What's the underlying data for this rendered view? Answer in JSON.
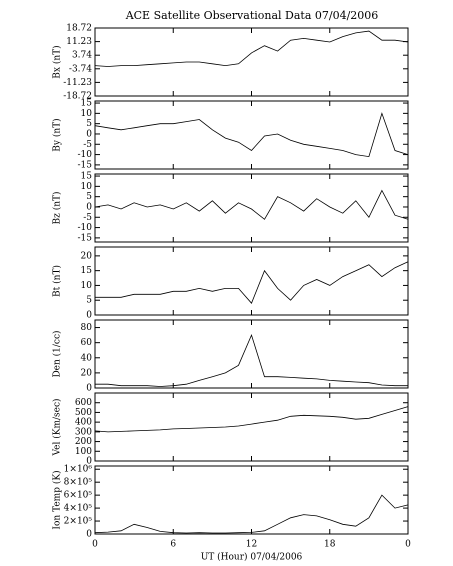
{
  "chart_data": [
    {
      "type": "line",
      "title": "ACE Satellite Observational Data  07/04/2006",
      "ylabel": "Bx (nT)",
      "color": "#000000",
      "x": [
        0,
        1,
        2,
        3,
        4,
        5,
        6,
        7,
        8,
        9,
        10,
        11,
        12,
        13,
        14,
        15,
        16,
        17,
        18,
        19,
        20,
        21,
        22,
        23,
        24
      ],
      "values": [
        -2,
        -2.5,
        -2,
        -2,
        -1.5,
        -1,
        -0.5,
        0,
        0,
        -1,
        -2,
        -1,
        5,
        9,
        6,
        12,
        13,
        12,
        11,
        14,
        16,
        17,
        12,
        12,
        11
      ],
      "xlim": [
        0,
        24
      ],
      "ylim": [
        -18.72,
        18.72
      ],
      "yticks": [
        18.72,
        11.23,
        3.74,
        -3.74,
        -11.23,
        -18.72
      ]
    },
    {
      "type": "line",
      "ylabel": "By (nT)",
      "color": "#000000",
      "x": [
        0,
        1,
        2,
        3,
        4,
        5,
        6,
        7,
        8,
        9,
        10,
        11,
        12,
        13,
        14,
        15,
        16,
        17,
        18,
        19,
        20,
        21,
        22,
        23,
        24
      ],
      "values": [
        4,
        3,
        2,
        3,
        4,
        5,
        5,
        6,
        7,
        2,
        -2,
        -4,
        -8,
        -1,
        0,
        -3,
        -5,
        -6,
        -7,
        -8,
        -10,
        -11,
        10,
        -8,
        -10
      ],
      "xlim": [
        0,
        24
      ],
      "ylim": [
        -17,
        16
      ],
      "yticks": [
        15,
        10,
        5,
        0,
        -5,
        -10,
        -15
      ]
    },
    {
      "type": "line",
      "ylabel": "Bz (nT)",
      "color": "#000000",
      "x": [
        0,
        1,
        2,
        3,
        4,
        5,
        6,
        7,
        8,
        9,
        10,
        11,
        12,
        13,
        14,
        15,
        16,
        17,
        18,
        19,
        20,
        21,
        22,
        23,
        24
      ],
      "values": [
        0,
        1,
        -1,
        2,
        0,
        1,
        -1,
        2,
        -2,
        3,
        -3,
        2,
        -1,
        -6,
        5,
        2,
        -2,
        4,
        0,
        -3,
        3,
        -5,
        8,
        -4,
        -6
      ],
      "xlim": [
        0,
        24
      ],
      "ylim": [
        -17,
        16
      ],
      "yticks": [
        15,
        10,
        5,
        0,
        -5,
        -10,
        -15
      ]
    },
    {
      "type": "line",
      "ylabel": "Bt (nT)",
      "color": "#000000",
      "x": [
        0,
        1,
        2,
        3,
        4,
        5,
        6,
        7,
        8,
        9,
        10,
        11,
        12,
        13,
        14,
        15,
        16,
        17,
        18,
        19,
        20,
        21,
        22,
        23,
        24
      ],
      "values": [
        6,
        6,
        6,
        7,
        7,
        7,
        8,
        8,
        9,
        8,
        9,
        9,
        4,
        15,
        9,
        5,
        10,
        12,
        10,
        13,
        15,
        17,
        13,
        16,
        18
      ],
      "xlim": [
        0,
        24
      ],
      "ylim": [
        0,
        23
      ],
      "yticks": [
        0,
        5,
        10,
        15,
        20
      ]
    },
    {
      "type": "line",
      "ylabel": "Den (1/cc)",
      "color": "#000000",
      "x": [
        0,
        1,
        2,
        3,
        4,
        5,
        6,
        7,
        8,
        9,
        10,
        11,
        12,
        13,
        14,
        15,
        16,
        17,
        18,
        19,
        20,
        21,
        22,
        23,
        24
      ],
      "values": [
        5,
        5,
        3,
        3,
        3,
        2,
        3,
        5,
        10,
        15,
        20,
        30,
        70,
        15,
        15,
        14,
        13,
        12,
        10,
        9,
        8,
        7,
        4,
        3,
        3
      ],
      "xlim": [
        0,
        24
      ],
      "ylim": [
        0,
        90
      ],
      "yticks": [
        0,
        20,
        40,
        60,
        80
      ]
    },
    {
      "type": "line",
      "ylabel": "Vel (Km/sec)",
      "color": "#000000",
      "x": [
        0,
        1,
        2,
        3,
        4,
        5,
        6,
        7,
        8,
        9,
        10,
        11,
        12,
        13,
        14,
        15,
        16,
        17,
        18,
        19,
        20,
        21,
        22,
        23,
        24
      ],
      "values": [
        310,
        300,
        305,
        310,
        315,
        320,
        330,
        335,
        340,
        345,
        350,
        360,
        380,
        400,
        420,
        460,
        470,
        465,
        460,
        450,
        430,
        440,
        480,
        520,
        560
      ],
      "xlim": [
        0,
        24
      ],
      "ylim": [
        0,
        700
      ],
      "yticks": [
        0,
        100,
        200,
        300,
        400,
        500,
        600
      ]
    },
    {
      "type": "line",
      "ylabel": "Ion Temp (K)",
      "xlabel": "UT (Hour)  07/04/2006",
      "color": "#000000",
      "x": [
        0,
        1,
        2,
        3,
        4,
        5,
        6,
        7,
        8,
        9,
        10,
        11,
        12,
        13,
        14,
        15,
        16,
        17,
        18,
        19,
        20,
        21,
        22,
        23,
        24
      ],
      "values": [
        20000,
        30000,
        50000,
        150000,
        100000,
        40000,
        20000,
        15000,
        20000,
        15000,
        15000,
        20000,
        25000,
        50000,
        150000,
        250000,
        300000,
        280000,
        220000,
        150000,
        120000,
        250000,
        600000,
        400000,
        450000
      ],
      "xlim": [
        0,
        24
      ],
      "ylim": [
        0,
        1050000
      ],
      "yticks": [
        0,
        {
          "value": 200000,
          "label": "2×10⁵"
        },
        {
          "value": 400000,
          "label": "4×10⁵"
        },
        {
          "value": 600000,
          "label": "6×10⁵"
        },
        {
          "value": 800000,
          "label": "8×10⁵"
        },
        {
          "value": 1000000,
          "label": "1×10⁶"
        }
      ],
      "xticks": [
        0,
        6,
        12,
        18,
        {
          "value": 24,
          "label": "0"
        }
      ]
    }
  ]
}
